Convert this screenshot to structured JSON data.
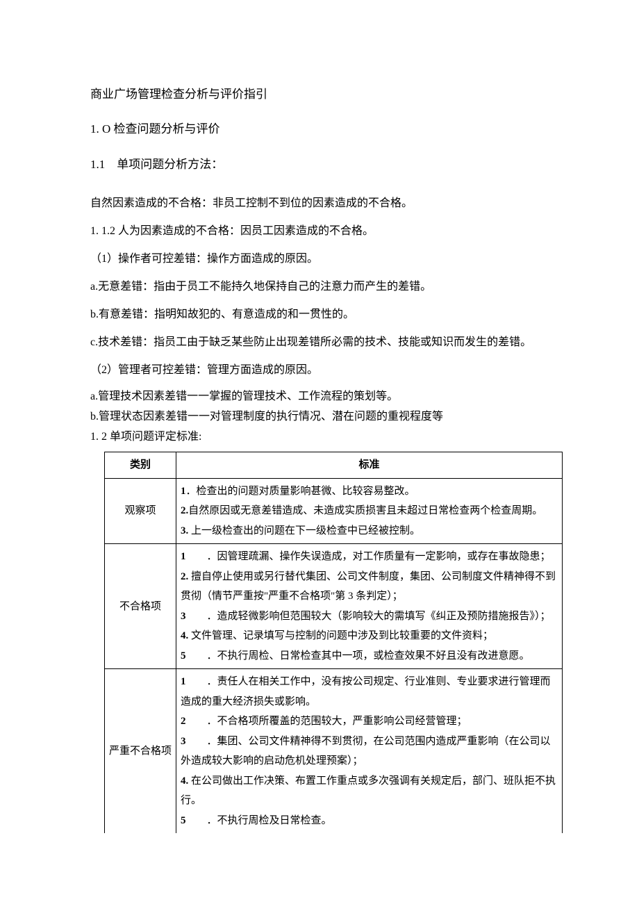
{
  "title": "商业广场管理检查分析与评价指引",
  "section1": "1. O 检查问题分析与评价",
  "section1_1": "1.1　单项问题分析方法：",
  "p1": "自然因素造成的不合格：非员工控制不到位的因素造成的不合格。",
  "p2": "1. 1.2 人为因素造成的不合格：因员工因素造成的不合格。",
  "p3": "（1）操作者可控差错：操作方面造成的原因。",
  "p4": "a.无意差错：指由于员工不能持久地保持自己的注意力而产生的差错。",
  "p5": "b.有意差错：指明知故犯的、有意造成的和一贯性的。",
  "p6": "c.技术差错：指员工由于缺乏某些防止出现差错所必需的技术、技能或知识而发生的差错。",
  "p7": "（2）管理者可控差错：管理方面造成的原因。",
  "p8": "a.管理技术因素差错一一掌握的管理技术、工作流程的策划等。",
  "p9": "b.管理状态因素差错一一对管理制度的执行情况、潜在问题的重视程度等",
  "p10": "1. 2 单项问题评定标准:",
  "table": {
    "header": {
      "cat": "类别",
      "std": "标准"
    },
    "rows": [
      {
        "cat": "观察项",
        "items": [
          {
            "n": "1",
            "t": "．检查出的问题对质量影响甚微、比较容易整改。"
          },
          {
            "n": "2.",
            "t": "自然原因或无意差错造成、未造成实质损害且未超过日常检查两个检查周期。"
          },
          {
            "n": "3.",
            "t": " 上一级检查出的问题在下一级检查中已经被控制。"
          }
        ]
      },
      {
        "cat": "不合格项",
        "items": [
          {
            "n": "1",
            "t": "　　．因管理疏漏、操作失误造成，对工作质量有一定影响，或存在事故隐患；"
          },
          {
            "n": "2.",
            "t": " 擅自停止使用或另行替代集团、公司文件制度，集团、公司制度文件精神得不到贯彻（情节严重按\"严重不合格项\"第 3 条判定）；"
          },
          {
            "n": "3",
            "t": "　　．造成轻微影响但范围较大（影响较大的需填写《纠正及预防措施报告》）；"
          },
          {
            "n": "4.",
            "t": " 文件管理、记录填写与控制的问题中涉及到比较重要的文件资料；"
          },
          {
            "n": "5",
            "t": "　　．不执行周检、日常检查其中一项，或检查效果不好且没有改进意愿。"
          }
        ]
      },
      {
        "cat": "严重不合格项",
        "items": [
          {
            "n": "1",
            "t": "　　．责任人在相关工作中，没有按公司规定、行业准则、专业要求进行管理而造成的重大经济损失或影响。"
          },
          {
            "n": "2",
            "t": "　　．不合格项所覆盖的范围较大，严重影响公司经营管理；"
          },
          {
            "n": "3",
            "t": "　　．集团、公司文件精神得不到贯彻，在公司范围内造成严重影响（在公司以外造成较大影响的启动危机处理预案）；"
          },
          {
            "n": "4.",
            "t": " 在公司做出工作决策、布置工作重点或多次强调有关规定后，部门、班队拒不执行。"
          },
          {
            "n": "5",
            "t": "　　．不执行周检及日常检查。"
          }
        ]
      }
    ]
  }
}
